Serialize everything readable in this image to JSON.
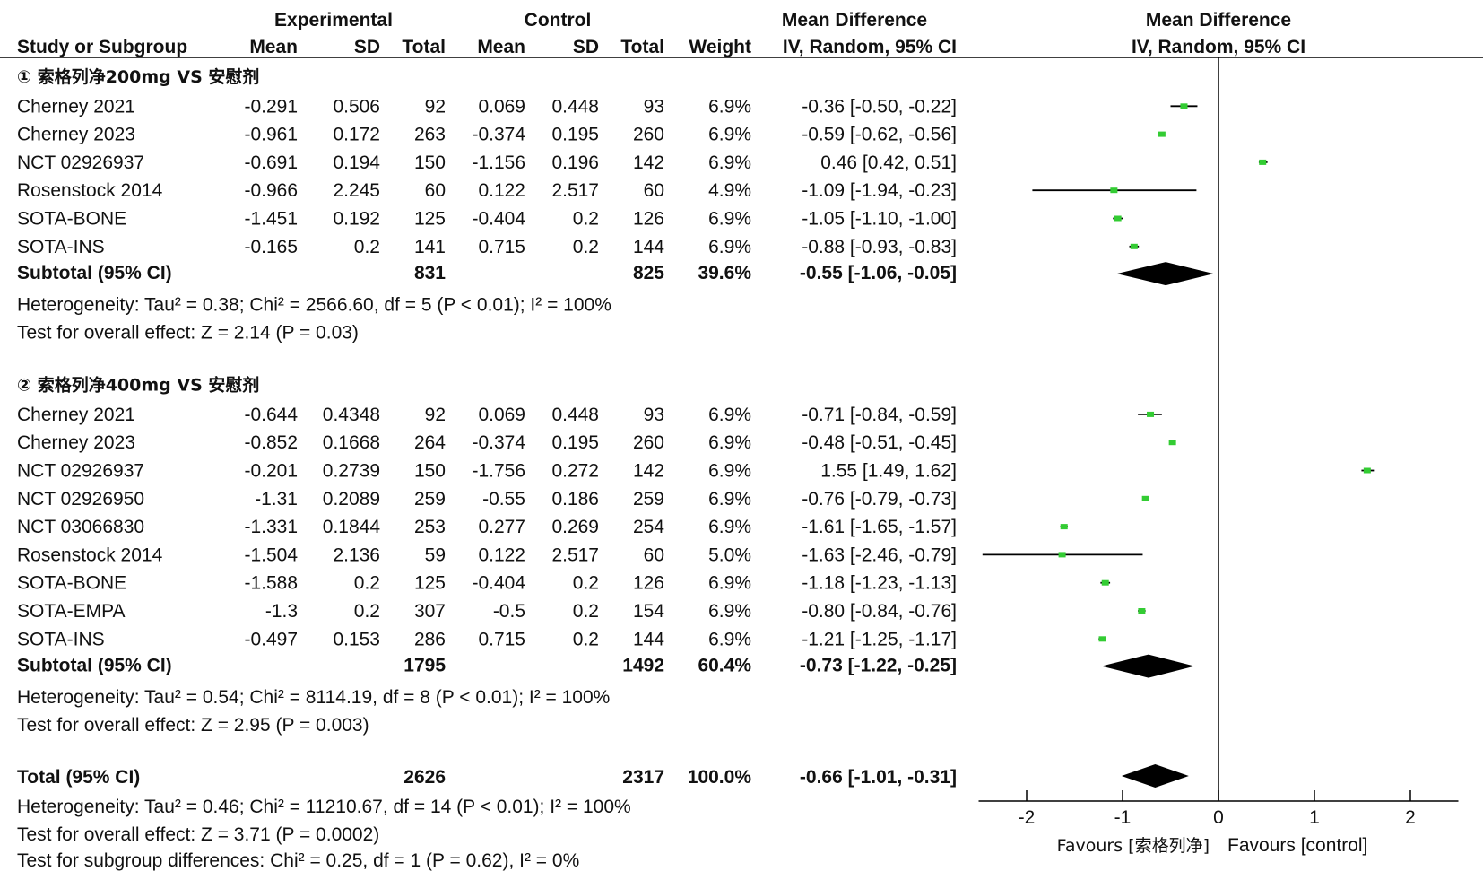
{
  "header": {
    "group_experimental": "Experimental",
    "group_control": "Control",
    "group_md": "Mean Difference",
    "group_plot": "Mean Difference",
    "col_study": "Study or Subgroup",
    "col_mean": "Mean",
    "col_sd": "SD",
    "col_total": "Total",
    "col_weight": "Weight",
    "col_ci": "IV, Random, 95% CI",
    "col_plot_ci": "IV, Random, 95% CI"
  },
  "subgroups": [
    {
      "title": "① 索格列净200mg VS 安慰剂",
      "studies": [
        {
          "name": "Cherney 2021",
          "e_mean": "-0.291",
          "e_sd": "0.506",
          "e_total": "92",
          "c_mean": "0.069",
          "c_sd": "0.448",
          "c_total": "93",
          "weight": "6.9%",
          "ci": "-0.36 [-0.50, -0.22]"
        },
        {
          "name": "Cherney 2023",
          "e_mean": "-0.961",
          "e_sd": "0.172",
          "e_total": "263",
          "c_mean": "-0.374",
          "c_sd": "0.195",
          "c_total": "260",
          "weight": "6.9%",
          "ci": "-0.59 [-0.62, -0.56]"
        },
        {
          "name": "NCT 02926937",
          "e_mean": "-0.691",
          "e_sd": "0.194",
          "e_total": "150",
          "c_mean": "-1.156",
          "c_sd": "0.196",
          "c_total": "142",
          "weight": "6.9%",
          "ci": "0.46 [0.42, 0.51]"
        },
        {
          "name": "Rosenstock 2014",
          "e_mean": "-0.966",
          "e_sd": "2.245",
          "e_total": "60",
          "c_mean": "0.122",
          "c_sd": "2.517",
          "c_total": "60",
          "weight": "4.9%",
          "ci": "-1.09 [-1.94, -0.23]"
        },
        {
          "name": "SOTA-BONE",
          "e_mean": "-1.451",
          "e_sd": "0.192",
          "e_total": "125",
          "c_mean": "-0.404",
          "c_sd": "0.2",
          "c_total": "126",
          "weight": "6.9%",
          "ci": "-1.05 [-1.10, -1.00]"
        },
        {
          "name": "SOTA-INS",
          "e_mean": "-0.165",
          "e_sd": "0.2",
          "e_total": "141",
          "c_mean": "0.715",
          "c_sd": "0.2",
          "c_total": "144",
          "weight": "6.9%",
          "ci": "-0.88 [-0.93, -0.83]"
        }
      ],
      "subtotal": {
        "label": "Subtotal (95% CI)",
        "e_total": "831",
        "c_total": "825",
        "weight": "39.6%",
        "ci": "-0.55 [-1.06, -0.05]"
      },
      "heterogeneity": "Heterogeneity: Tau² = 0.38; Chi² = 2566.60, df = 5 (P < 0.01); I² = 100%",
      "overall": "Test for overall effect: Z = 2.14 (P = 0.03)"
    },
    {
      "title": "② 索格列净400mg VS 安慰剂",
      "studies": [
        {
          "name": "Cherney 2021",
          "e_mean": "-0.644",
          "e_sd": "0.4348",
          "e_total": "92",
          "c_mean": "0.069",
          "c_sd": "0.448",
          "c_total": "93",
          "weight": "6.9%",
          "ci": "-0.71 [-0.84, -0.59]"
        },
        {
          "name": "Cherney 2023",
          "e_mean": "-0.852",
          "e_sd": "0.1668",
          "e_total": "264",
          "c_mean": "-0.374",
          "c_sd": "0.195",
          "c_total": "260",
          "weight": "6.9%",
          "ci": "-0.48 [-0.51, -0.45]"
        },
        {
          "name": "NCT 02926937",
          "e_mean": "-0.201",
          "e_sd": "0.2739",
          "e_total": "150",
          "c_mean": "-1.756",
          "c_sd": "0.272",
          "c_total": "142",
          "weight": "6.9%",
          "ci": "1.55 [1.49, 1.62]"
        },
        {
          "name": "NCT 02926950",
          "e_mean": "-1.31",
          "e_sd": "0.2089",
          "e_total": "259",
          "c_mean": "-0.55",
          "c_sd": "0.186",
          "c_total": "259",
          "weight": "6.9%",
          "ci": "-0.76 [-0.79, -0.73]"
        },
        {
          "name": "NCT 03066830",
          "e_mean": "-1.331",
          "e_sd": "0.1844",
          "e_total": "253",
          "c_mean": "0.277",
          "c_sd": "0.269",
          "c_total": "254",
          "weight": "6.9%",
          "ci": "-1.61 [-1.65, -1.57]"
        },
        {
          "name": "Rosenstock 2014",
          "e_mean": "-1.504",
          "e_sd": "2.136",
          "e_total": "59",
          "c_mean": "0.122",
          "c_sd": "2.517",
          "c_total": "60",
          "weight": "5.0%",
          "ci": "-1.63 [-2.46, -0.79]"
        },
        {
          "name": "SOTA-BONE",
          "e_mean": "-1.588",
          "e_sd": "0.2",
          "e_total": "125",
          "c_mean": "-0.404",
          "c_sd": "0.2",
          "c_total": "126",
          "weight": "6.9%",
          "ci": "-1.18 [-1.23, -1.13]"
        },
        {
          "name": "SOTA-EMPA",
          "e_mean": "-1.3",
          "e_sd": "0.2",
          "e_total": "307",
          "c_mean": "-0.5",
          "c_sd": "0.2",
          "c_total": "154",
          "weight": "6.9%",
          "ci": "-0.80 [-0.84, -0.76]"
        },
        {
          "name": "SOTA-INS",
          "e_mean": "-0.497",
          "e_sd": "0.153",
          "e_total": "286",
          "c_mean": "0.715",
          "c_sd": "0.2",
          "c_total": "144",
          "weight": "6.9%",
          "ci": "-1.21 [-1.25, -1.17]"
        }
      ],
      "subtotal": {
        "label": "Subtotal (95% CI)",
        "e_total": "1795",
        "c_total": "1492",
        "weight": "60.4%",
        "ci": "-0.73 [-1.22, -0.25]"
      },
      "heterogeneity": "Heterogeneity: Tau² = 0.54; Chi² = 8114.19, df = 8 (P < 0.01); I² = 100%",
      "overall": "Test for overall effect: Z = 2.95 (P = 0.003)"
    }
  ],
  "total": {
    "label": "Total (95% CI)",
    "e_total": "2626",
    "c_total": "2317",
    "weight": "100.0%",
    "ci": "-0.66 [-1.01, -0.31]",
    "heterogeneity": "Heterogeneity: Tau² = 0.46; Chi² = 11210.67, df = 14 (P < 0.01); I² = 100%",
    "overall": "Test for overall effect: Z = 3.71 (P = 0.0002)",
    "subgroup_diff": "Test for subgroup differences: Chi² = 0.25, df = 1 (P = 0.62), I² = 0%"
  },
  "axis": {
    "ticks": [
      "-2",
      "-1",
      "0",
      "1",
      "2"
    ],
    "favours_left": "Favours [索格列净]",
    "favours_right": "Favours [control]"
  },
  "colors": {
    "point": "#33cc33",
    "line": "#000000",
    "diamond": "#000000"
  },
  "chart_data": {
    "type": "forest",
    "xlim": [
      -2.5,
      2.5
    ],
    "null_line": 0,
    "studies": [
      {
        "subgroup": 1,
        "name": "Cherney 2021",
        "md": -0.36,
        "lo": -0.5,
        "hi": -0.22,
        "weight": 6.9
      },
      {
        "subgroup": 1,
        "name": "Cherney 2023",
        "md": -0.59,
        "lo": -0.62,
        "hi": -0.56,
        "weight": 6.9
      },
      {
        "subgroup": 1,
        "name": "NCT 02926937",
        "md": 0.46,
        "lo": 0.42,
        "hi": 0.51,
        "weight": 6.9
      },
      {
        "subgroup": 1,
        "name": "Rosenstock 2014",
        "md": -1.09,
        "lo": -1.94,
        "hi": -0.23,
        "weight": 4.9
      },
      {
        "subgroup": 1,
        "name": "SOTA-BONE",
        "md": -1.05,
        "lo": -1.1,
        "hi": -1.0,
        "weight": 6.9
      },
      {
        "subgroup": 1,
        "name": "SOTA-INS",
        "md": -0.88,
        "lo": -0.93,
        "hi": -0.83,
        "weight": 6.9
      },
      {
        "subgroup": 2,
        "name": "Cherney 2021",
        "md": -0.71,
        "lo": -0.84,
        "hi": -0.59,
        "weight": 6.9
      },
      {
        "subgroup": 2,
        "name": "Cherney 2023",
        "md": -0.48,
        "lo": -0.51,
        "hi": -0.45,
        "weight": 6.9
      },
      {
        "subgroup": 2,
        "name": "NCT 02926937",
        "md": 1.55,
        "lo": 1.49,
        "hi": 1.62,
        "weight": 6.9
      },
      {
        "subgroup": 2,
        "name": "NCT 02926950",
        "md": -0.76,
        "lo": -0.79,
        "hi": -0.73,
        "weight": 6.9
      },
      {
        "subgroup": 2,
        "name": "NCT 03066830",
        "md": -1.61,
        "lo": -1.65,
        "hi": -1.57,
        "weight": 6.9
      },
      {
        "subgroup": 2,
        "name": "Rosenstock 2014",
        "md": -1.63,
        "lo": -2.46,
        "hi": -0.79,
        "weight": 5.0
      },
      {
        "subgroup": 2,
        "name": "SOTA-BONE",
        "md": -1.18,
        "lo": -1.23,
        "hi": -1.13,
        "weight": 6.9
      },
      {
        "subgroup": 2,
        "name": "SOTA-EMPA",
        "md": -0.8,
        "lo": -0.84,
        "hi": -0.76,
        "weight": 6.9
      },
      {
        "subgroup": 2,
        "name": "SOTA-INS",
        "md": -1.21,
        "lo": -1.25,
        "hi": -1.17,
        "weight": 6.9
      }
    ],
    "summaries": [
      {
        "name": "Subtotal (95% CI)",
        "subgroup": 1,
        "md": -0.55,
        "lo": -1.06,
        "hi": -0.05
      },
      {
        "name": "Subtotal (95% CI)",
        "subgroup": 2,
        "md": -0.73,
        "lo": -1.22,
        "hi": -0.25
      },
      {
        "name": "Total (95% CI)",
        "md": -0.66,
        "lo": -1.01,
        "hi": -0.31
      }
    ]
  }
}
